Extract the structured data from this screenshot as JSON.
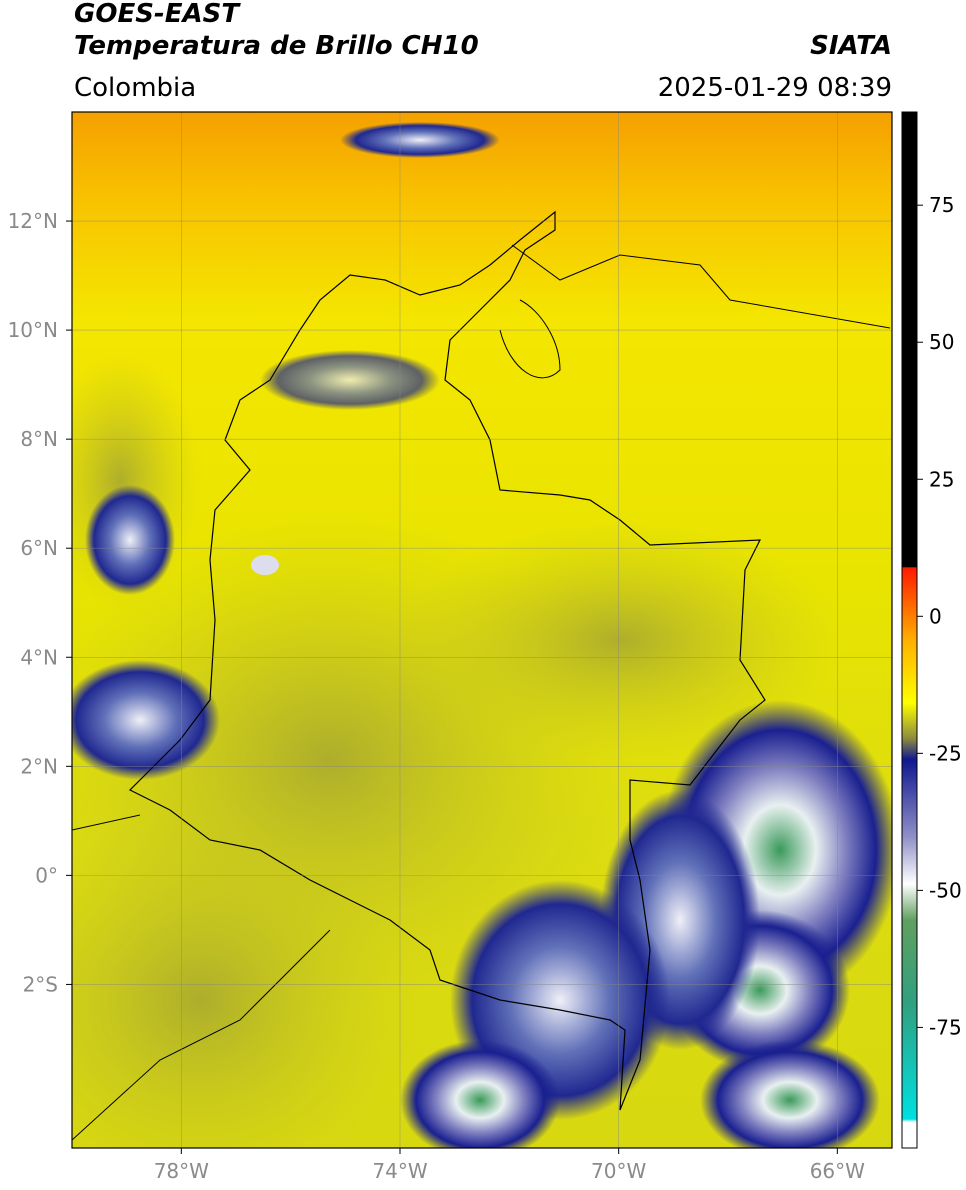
{
  "header": {
    "title": "GOES-EAST",
    "subtitle": "Temperatura de Brillo CH10",
    "source": "SIATA",
    "region": "Colombia",
    "timestamp": "2025-01-29 08:39"
  },
  "map": {
    "xlim": [
      -80,
      -65
    ],
    "ylim": [
      -5,
      14
    ],
    "xticks": [
      {
        "value": -78,
        "label": "78°W"
      },
      {
        "value": -74,
        "label": "74°W"
      },
      {
        "value": -70,
        "label": "70°W"
      },
      {
        "value": -66,
        "label": "66°W"
      }
    ],
    "yticks": [
      {
        "value": 12,
        "label": "12°N"
      },
      {
        "value": 10,
        "label": "10°N"
      },
      {
        "value": 8,
        "label": "8°N"
      },
      {
        "value": 6,
        "label": "6°N"
      },
      {
        "value": 4,
        "label": "4°N"
      },
      {
        "value": 2,
        "label": "2°N"
      },
      {
        "value": 0,
        "label": "0°"
      },
      {
        "value": -2,
        "label": "2°S"
      }
    ],
    "grid": true
  },
  "colorbar": {
    "lim": [
      -97,
      92
    ],
    "ticks": [
      75,
      50,
      25,
      0,
      -25,
      -50,
      -75
    ]
  }
}
